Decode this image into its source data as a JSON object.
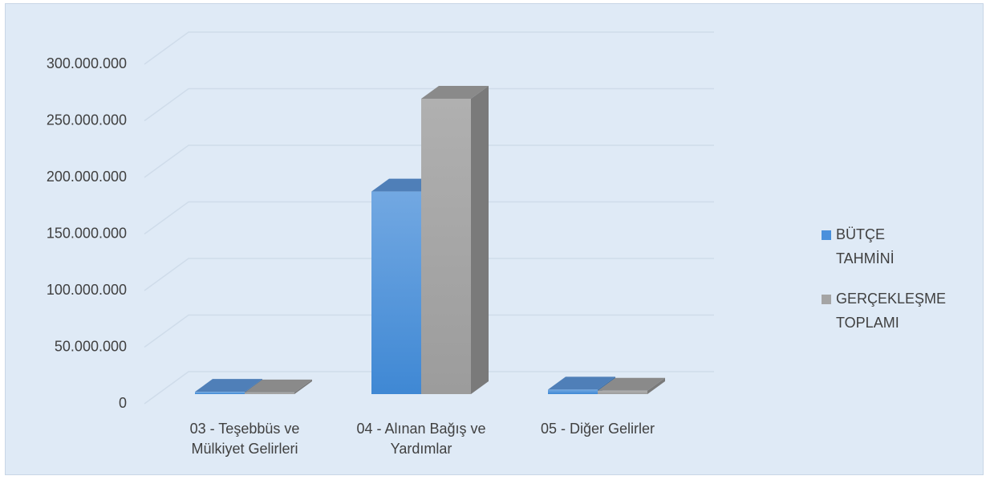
{
  "chart_data": {
    "type": "bar3d",
    "categories": [
      "03 - Teşebbüs ve Mülkiyet Gelirleri",
      "04 - Alınan Bağış ve Yardımlar",
      "05 - Diğer Gelirler"
    ],
    "series": [
      {
        "name": "BÜTÇE TAHMİNİ",
        "color": "#4a90dc",
        "values": [
          2000000,
          179000000,
          4000000
        ]
      },
      {
        "name": "GERÇEKLEŞME TOPLAMI",
        "color": "#a5a5a5",
        "values": [
          1500000,
          261000000,
          3000000
        ]
      }
    ],
    "ylim": [
      0,
      300000000
    ],
    "yticks": [
      0,
      {
        "value": 50000000,
        "label": "50.000.000"
      },
      {
        "value": 100000000,
        "label": "100.000.000"
      },
      {
        "value": 150000000,
        "label": "150.000.000"
      },
      {
        "value": 200000000,
        "label": "200.000.000"
      },
      {
        "value": 250000000,
        "label": "250.000.000"
      },
      {
        "value": 300000000,
        "label": "300.000.000"
      }
    ],
    "grid": true,
    "legend": "right"
  }
}
